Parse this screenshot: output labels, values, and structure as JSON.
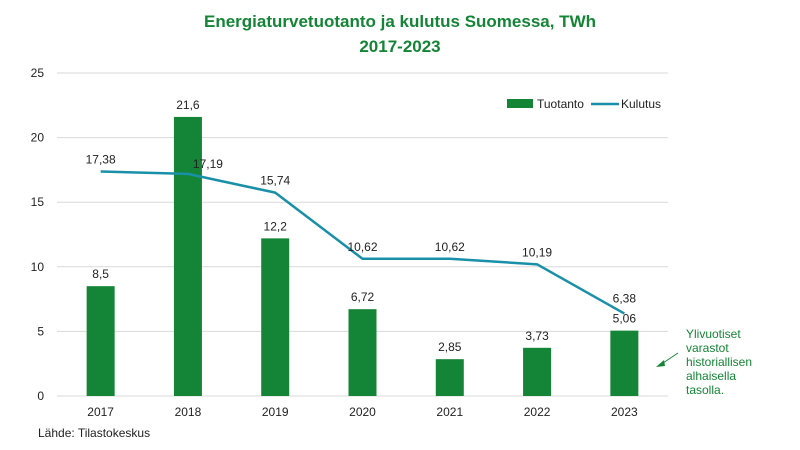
{
  "colors": {
    "bar": "#148536",
    "line": "#1a8fa8",
    "title": "#148536",
    "annotation": "#148536",
    "grid": "#d9d9d9"
  },
  "chart_data": {
    "type": "bar",
    "title": "Energiaturvetuotanto ja kulutus Suomessa, TWh",
    "subtitle": "2017-2023",
    "categories": [
      "2017",
      "2018",
      "2019",
      "2020",
      "2021",
      "2022",
      "2023"
    ],
    "series": [
      {
        "name": "Tuotanto",
        "type": "bar",
        "values": [
          8.5,
          21.6,
          12.2,
          6.72,
          2.85,
          3.73,
          5.06
        ],
        "labels": [
          "8,5",
          "21,6",
          "12,2",
          "6,72",
          "2,85",
          "3,73",
          "5,06"
        ]
      },
      {
        "name": "Kulutus",
        "type": "line",
        "values": [
          17.38,
          17.19,
          15.74,
          10.62,
          10.62,
          10.19,
          6.38
        ],
        "labels": [
          "17,38",
          "17,19",
          "15,74",
          "10,62",
          "10,62",
          "10,19",
          "6,38"
        ]
      }
    ],
    "y_ticks": [
      "0",
      "5",
      "10",
      "15",
      "20",
      "25"
    ],
    "ylim": [
      0,
      25
    ],
    "grid": true,
    "legend": "top-right",
    "annotation": [
      "Ylivuotiset",
      "varastot",
      "historiallisen",
      "alhaisella",
      "tasolla."
    ]
  },
  "source": "Lähde: Tilastokeskus"
}
